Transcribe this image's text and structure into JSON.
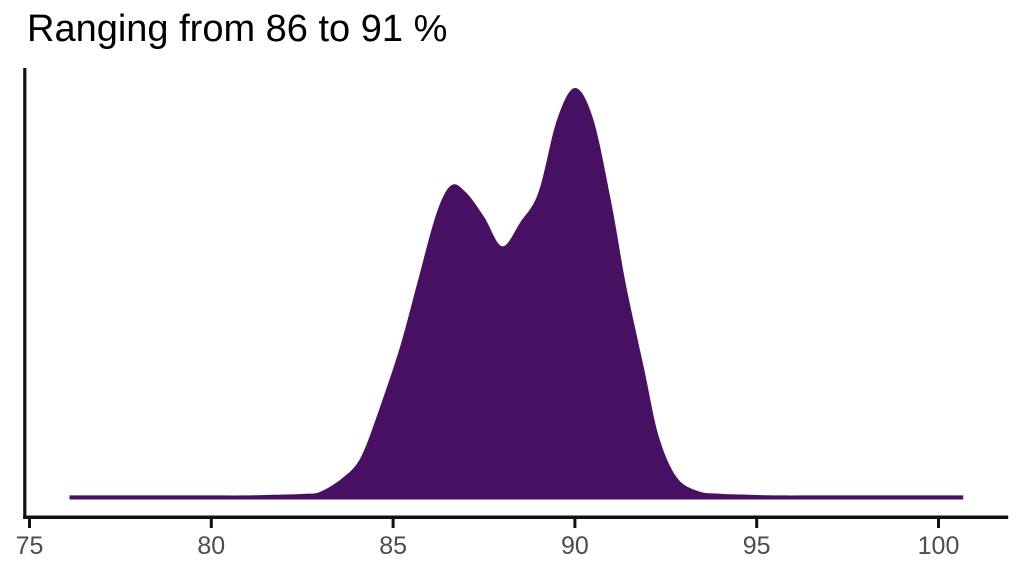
{
  "chart_data": {
    "type": "area",
    "title": "Ranging from 86 to 91 %",
    "xlabel": "",
    "ylabel": "",
    "x_ticks": [
      "75",
      "80",
      "85",
      "90",
      "95",
      "100"
    ],
    "x_axis_range": [
      74.8,
      101.9
    ],
    "y_axis": {
      "ticks": [],
      "label": null
    },
    "ylim_relative": [
      0,
      1.1
    ],
    "legend": "none",
    "grid": false,
    "description": "Bimodal density curve of a percentage variable; modes near 86.6 and 90.0, valley near 88.0, support roughly 76 to 101.",
    "series": [
      {
        "name": "density",
        "x": [
          76.1,
          77.0,
          78.0,
          79.0,
          80.0,
          81.0,
          82.0,
          82.6,
          83.0,
          83.6,
          84.1,
          84.6,
          85.2,
          85.7,
          86.2,
          86.6,
          87.0,
          87.5,
          88.0,
          88.5,
          89.0,
          89.5,
          90.0,
          90.5,
          91.0,
          91.4,
          91.9,
          92.3,
          92.8,
          93.4,
          94.0,
          94.6,
          95.5,
          97.0,
          98.5,
          100.0,
          100.68
        ],
        "density_rel": [
          0.004,
          0.004,
          0.004,
          0.004,
          0.004,
          0.004,
          0.006,
          0.008,
          0.013,
          0.046,
          0.095,
          0.21,
          0.37,
          0.535,
          0.695,
          0.762,
          0.745,
          0.685,
          0.613,
          0.672,
          0.745,
          0.92,
          1.0,
          0.925,
          0.72,
          0.52,
          0.315,
          0.15,
          0.048,
          0.014,
          0.008,
          0.006,
          0.004,
          0.004,
          0.004,
          0.004,
          0.004
        ]
      }
    ]
  },
  "colors": {
    "density_fill": "#481063",
    "axis_line": "#111111",
    "axis_text": "#4d4d4d",
    "title_text": "#000000",
    "background": "#ffffff"
  }
}
